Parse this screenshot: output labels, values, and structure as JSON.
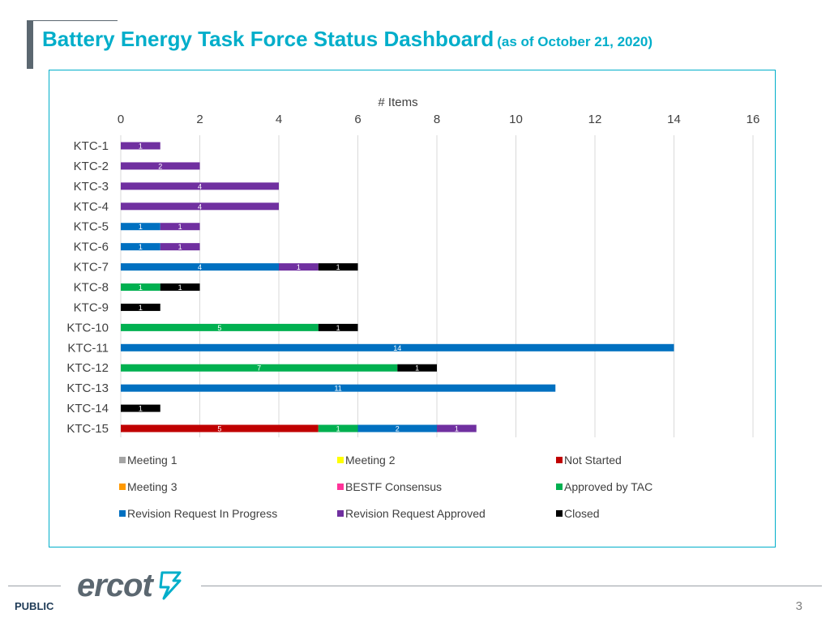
{
  "header": {
    "title": "Battery Energy Task Force Status Dashboard",
    "subtitle": "(as of October 21, 2020)",
    "title_color": "#00aeca"
  },
  "chart_data": {
    "type": "bar",
    "orientation": "horizontal",
    "stacked": true,
    "xlabel": "# Items",
    "xlim": [
      0,
      16
    ],
    "x_ticks": [
      0,
      2,
      4,
      6,
      8,
      10,
      12,
      14,
      16
    ],
    "x_axis_position": "top",
    "grid": true,
    "legend_position": "bottom",
    "categories": [
      "KTC-1",
      "KTC-2",
      "KTC-3",
      "KTC-4",
      "KTC-5",
      "KTC-6",
      "KTC-7",
      "KTC-8",
      "KTC-9",
      "KTC-10",
      "KTC-11",
      "KTC-12",
      "KTC-13",
      "KTC-14",
      "KTC-15"
    ],
    "series": [
      {
        "name": "Meeting 1",
        "color": "#a5a5a5",
        "values": [
          0,
          0,
          0,
          0,
          0,
          0,
          0,
          0,
          0,
          0,
          0,
          0,
          0,
          0,
          0
        ]
      },
      {
        "name": "Meeting 2",
        "color": "#ffff00",
        "values": [
          0,
          0,
          0,
          0,
          0,
          0,
          0,
          0,
          0,
          0,
          0,
          0,
          0,
          0,
          0
        ]
      },
      {
        "name": "Not Started",
        "color": "#c00000",
        "values": [
          0,
          0,
          0,
          0,
          0,
          0,
          0,
          0,
          0,
          0,
          0,
          0,
          0,
          0,
          5
        ]
      },
      {
        "name": "Meeting 3",
        "color": "#ff9900",
        "values": [
          0,
          0,
          0,
          0,
          0,
          0,
          0,
          0,
          0,
          0,
          0,
          0,
          0,
          0,
          0
        ]
      },
      {
        "name": "BESTF Consensus",
        "color": "#ff3399",
        "values": [
          0,
          0,
          0,
          0,
          0,
          0,
          0,
          0,
          0,
          0,
          0,
          0,
          0,
          0,
          0
        ]
      },
      {
        "name": "Approved by TAC",
        "color": "#00b050",
        "values": [
          0,
          0,
          0,
          0,
          0,
          0,
          0,
          1,
          0,
          5,
          0,
          7,
          0,
          0,
          1
        ]
      },
      {
        "name": "Revision Request In Progress",
        "color": "#0070c0",
        "values": [
          0,
          0,
          0,
          0,
          1,
          1,
          4,
          0,
          0,
          0,
          14,
          0,
          11,
          0,
          2
        ]
      },
      {
        "name": "Revision Request Approved",
        "color": "#7030a0",
        "values": [
          1,
          2,
          4,
          4,
          1,
          1,
          1,
          0,
          0,
          0,
          0,
          0,
          0,
          0,
          1
        ]
      },
      {
        "name": "Closed",
        "color": "#000000",
        "values": [
          0,
          0,
          0,
          0,
          0,
          0,
          1,
          1,
          1,
          1,
          0,
          1,
          0,
          1,
          0
        ]
      }
    ]
  },
  "footer": {
    "logo_text": "ercot",
    "classification": "PUBLIC",
    "page_number": "3"
  }
}
